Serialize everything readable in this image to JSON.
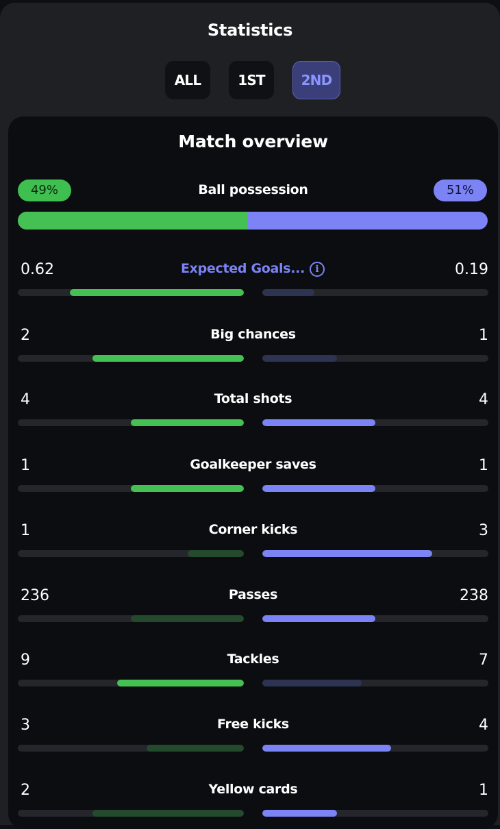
{
  "header": {
    "title": "Statistics"
  },
  "tabs": [
    {
      "label": "ALL",
      "active": false
    },
    {
      "label": "1ST",
      "active": false
    },
    {
      "label": "2ND",
      "active": true
    }
  ],
  "overview": {
    "title": "Match overview",
    "possession": {
      "label": "Ball possession",
      "home": "49%",
      "away": "51%",
      "home_fraction": 0.49
    },
    "stats": [
      {
        "label": "Expected Goals...",
        "home": "0.62",
        "away": "0.19",
        "home_fill": 0.77,
        "away_fill": 0.23,
        "home_winner": true,
        "away_winner": false,
        "info_icon": true
      },
      {
        "label": "Big chances",
        "home": "2",
        "away": "1",
        "home_fill": 0.67,
        "away_fill": 0.33,
        "home_winner": true,
        "away_winner": false
      },
      {
        "label": "Total shots",
        "home": "4",
        "away": "4",
        "home_fill": 0.5,
        "away_fill": 0.5,
        "home_winner": true,
        "away_winner": true
      },
      {
        "label": "Goalkeeper saves",
        "home": "1",
        "away": "1",
        "home_fill": 0.5,
        "away_fill": 0.5,
        "home_winner": true,
        "away_winner": true
      },
      {
        "label": "Corner kicks",
        "home": "1",
        "away": "3",
        "home_fill": 0.25,
        "away_fill": 0.75,
        "home_winner": false,
        "away_winner": true
      },
      {
        "label": "Passes",
        "home": "236",
        "away": "238",
        "home_fill": 0.5,
        "away_fill": 0.5,
        "home_winner": false,
        "away_winner": true
      },
      {
        "label": "Tackles",
        "home": "9",
        "away": "7",
        "home_fill": 0.56,
        "away_fill": 0.44,
        "home_winner": true,
        "away_winner": false
      },
      {
        "label": "Free kicks",
        "home": "3",
        "away": "4",
        "home_fill": 0.43,
        "away_fill": 0.57,
        "home_winner": false,
        "away_winner": true
      },
      {
        "label": "Yellow cards",
        "home": "2",
        "away": "1",
        "home_fill": 0.67,
        "away_fill": 0.33,
        "home_winner": false,
        "away_winner": true
      }
    ]
  },
  "colors": {
    "home_strong": "#45c052",
    "home_weak": "#234a2c",
    "away_strong": "#7b83f5",
    "away_weak": "#2f3352",
    "track": "#25262b"
  }
}
